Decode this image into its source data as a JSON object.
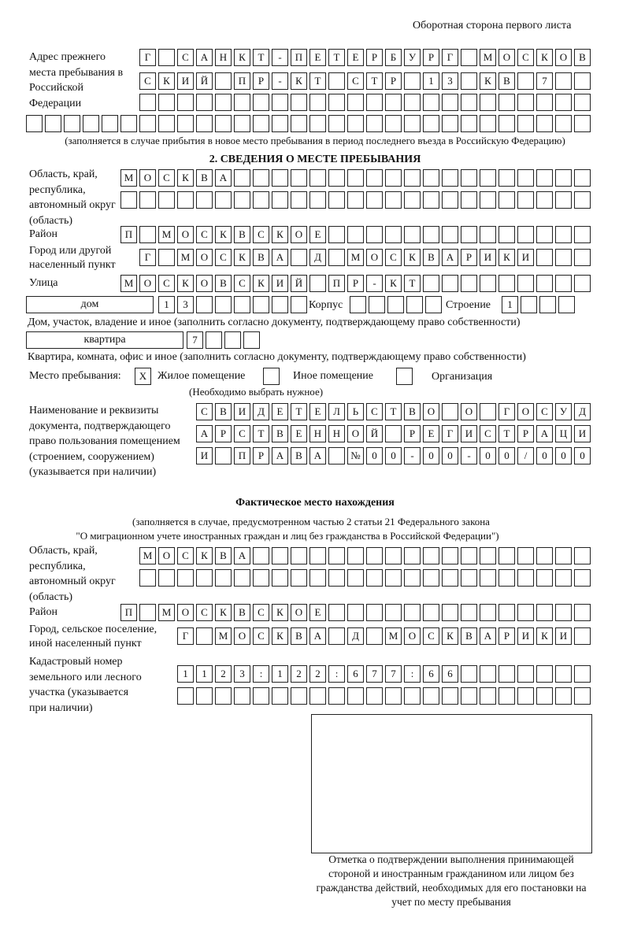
{
  "header": "Оборотная сторона первого листа",
  "prev_address": {
    "label": "Адрес прежнего места пребывания в Российской Федерации",
    "rows": [
      [
        "Г",
        "",
        "С",
        "А",
        "Н",
        "К",
        "Т",
        "-",
        "П",
        "Е",
        "Т",
        "Е",
        "Р",
        "Б",
        "У",
        "Р",
        "Г",
        "",
        "М",
        "О",
        "С",
        "К",
        "О",
        "В"
      ],
      [
        "С",
        "К",
        "И",
        "Й",
        "",
        "П",
        "Р",
        "-",
        "К",
        "Т",
        "",
        "С",
        "Т",
        "Р",
        "",
        "1",
        "3",
        "",
        "К",
        "В",
        "",
        "7",
        "",
        ""
      ],
      [
        "",
        "",
        "",
        "",
        "",
        "",
        "",
        "",
        "",
        "",
        "",
        "",
        "",
        "",
        "",
        "",
        "",
        "",
        "",
        "",
        "",
        "",
        "",
        ""
      ],
      [
        "",
        "",
        "",
        "",
        "",
        "",
        "",
        "",
        "",
        "",
        "",
        "",
        "",
        "",
        "",
        "",
        "",
        "",
        "",
        "",
        "",
        "",
        "",
        "",
        "",
        "",
        "",
        "",
        "",
        ""
      ]
    ],
    "note": "(заполняется в случае прибытия в новое место пребывания в период последнего въезда в Российскую Федерацию)"
  },
  "section2": {
    "title": "2. СВЕДЕНИЯ О МЕСТЕ ПРЕБЫВАНИЯ",
    "region_label": "Область, край, республика, автономный округ (область)",
    "region_rows": [
      [
        "М",
        "О",
        "С",
        "К",
        "В",
        "А",
        "",
        "",
        "",
        "",
        "",
        "",
        "",
        "",
        "",
        "",
        "",
        "",
        "",
        "",
        "",
        "",
        "",
        "",
        ""
      ],
      [
        "",
        "",
        "",
        "",
        "",
        "",
        "",
        "",
        "",
        "",
        "",
        "",
        "",
        "",
        "",
        "",
        "",
        "",
        "",
        "",
        "",
        "",
        "",
        "",
        ""
      ]
    ],
    "district_label": "Район",
    "district_row": [
      "П",
      "",
      "М",
      "О",
      "С",
      "К",
      "В",
      "С",
      "К",
      "О",
      "Е",
      "",
      "",
      "",
      "",
      "",
      "",
      "",
      "",
      "",
      "",
      "",
      "",
      "",
      ""
    ],
    "city_label": "Город или другой населенный пункт",
    "city_row": [
      "Г",
      "",
      "М",
      "О",
      "С",
      "К",
      "В",
      "А",
      "",
      "Д",
      "",
      "М",
      "О",
      "С",
      "К",
      "В",
      "А",
      "Р",
      "И",
      "К",
      "И",
      "",
      "",
      ""
    ],
    "street_label": "Улица",
    "street_row": [
      "М",
      "О",
      "С",
      "К",
      "О",
      "В",
      "С",
      "К",
      "И",
      "Й",
      "",
      "П",
      "Р",
      "-",
      "К",
      "Т",
      "",
      "",
      "",
      "",
      "",
      "",
      "",
      "",
      ""
    ],
    "house_type": "дом",
    "house_cells": [
      "1",
      "3",
      "",
      "",
      "",
      "",
      "",
      ""
    ],
    "korpus_label": "Корпус",
    "korpus_cells": [
      "",
      "",
      "",
      "",
      ""
    ],
    "building_label": "Строение",
    "building_cells": [
      "1",
      "",
      "",
      ""
    ],
    "house_note": "Дом, участок, владение и иное (заполнить согласно документу, подтверждающему право собственности)",
    "apt_type": "квартира",
    "apt_cells": [
      "7",
      "",
      "",
      ""
    ],
    "apt_note": "Квартира, комната, офис и иное (заполнить согласно документу, подтверждающему право собственности)",
    "stay_label": "Место пребывания:",
    "stay_options": [
      {
        "label": "Жилое помещение",
        "mark": "X"
      },
      {
        "label": "Иное помещение",
        "mark": ""
      },
      {
        "label": "Организация",
        "mark": ""
      }
    ],
    "stay_note": "(Необходимо выбрать нужное)",
    "doc_label": "Наименование и реквизиты документа, подтверждающего право пользования помещением (строением, сооружением) (указывается при наличии)",
    "doc_rows": [
      [
        "С",
        "В",
        "И",
        "Д",
        "Е",
        "Т",
        "Е",
        "Л",
        "Ь",
        "С",
        "Т",
        "В",
        "О",
        "",
        "О",
        "",
        "Г",
        "О",
        "С",
        "У",
        "Д"
      ],
      [
        "А",
        "Р",
        "С",
        "Т",
        "В",
        "Е",
        "Н",
        "Н",
        "О",
        "Й",
        "",
        "Р",
        "Е",
        "Г",
        "И",
        "С",
        "Т",
        "Р",
        "А",
        "Ц",
        "И"
      ],
      [
        "И",
        "",
        "П",
        "Р",
        "А",
        "В",
        "А",
        "",
        "№",
        "0",
        "0",
        "-",
        "0",
        "0",
        "-",
        "0",
        "0",
        "/",
        "0",
        "0",
        "0"
      ]
    ]
  },
  "actual": {
    "title": "Фактическое место нахождения",
    "note1": "(заполняется в случае, предусмотренном частью 2 статьи 21 Федерального закона",
    "note2": "\"О миграционном учете иностранных граждан и лиц без гражданства в Российской Федерации\")",
    "region_label": "Область, край, республика, автономный округ (область)",
    "region_rows": [
      [
        "М",
        "О",
        "С",
        "К",
        "В",
        "А",
        "",
        "",
        "",
        "",
        "",
        "",
        "",
        "",
        "",
        "",
        "",
        "",
        "",
        "",
        "",
        "",
        "",
        ""
      ],
      [
        "",
        "",
        "",
        "",
        "",
        "",
        "",
        "",
        "",
        "",
        "",
        "",
        "",
        "",
        "",
        "",
        "",
        "",
        "",
        "",
        "",
        "",
        "",
        ""
      ]
    ],
    "district_label": "Район",
    "district_row": [
      "П",
      "",
      "М",
      "О",
      "С",
      "К",
      "В",
      "С",
      "К",
      "О",
      "Е",
      "",
      "",
      "",
      "",
      "",
      "",
      "",
      "",
      "",
      "",
      "",
      "",
      "",
      ""
    ],
    "city_label": "Город, сельское поселение, иной населенный пункт",
    "city_row": [
      "Г",
      "",
      "М",
      "О",
      "С",
      "К",
      "В",
      "А",
      "",
      "Д",
      "",
      "М",
      "О",
      "С",
      "К",
      "В",
      "А",
      "Р",
      "И",
      "К",
      "И",
      ""
    ],
    "cadastral_label": "Кадастровый номер земельного или лесного участка (указывается при наличии)",
    "cadastral_rows": [
      [
        "1",
        "1",
        "2",
        "3",
        ":",
        "1",
        "2",
        "2",
        ":",
        "6",
        "7",
        "7",
        ":",
        "6",
        "6",
        "",
        "",
        "",
        "",
        "",
        "",
        ""
      ],
      [
        "",
        "",
        "",
        "",
        "",
        "",
        "",
        "",
        "",
        "",
        "",
        "",
        "",
        "",
        "",
        "",
        "",
        "",
        "",
        "",
        "",
        ""
      ]
    ]
  },
  "stamp_caption": "Отметка о подтверждении выполнения принимающей стороной и иностранным гражданином или лицом без гражданства действий, необходимых для его постановки на учет по месту пребывания"
}
